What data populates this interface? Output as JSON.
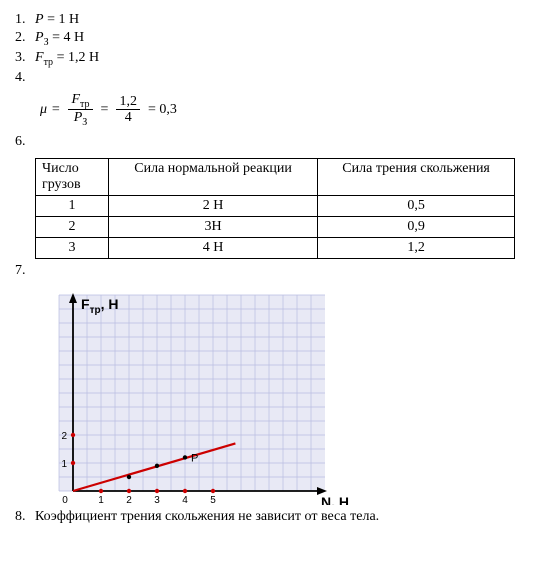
{
  "items": [
    {
      "n": "1.",
      "var": "P",
      "val": "= 1 Н"
    },
    {
      "n": "2.",
      "var": "P",
      "sub": "З",
      "val": "= 4 Н"
    },
    {
      "n": "3.",
      "var": "F",
      "sub": "тр",
      "val": "= 1,2 Н"
    },
    {
      "n": "4."
    }
  ],
  "formula": {
    "mu": "μ",
    "eq": "=",
    "f1num": "Fтр",
    "f1den": "PЗ",
    "f2num": "1,2",
    "f2den": "4",
    "result": "= 0,3"
  },
  "item6": "6.",
  "table": {
    "headers": [
      "Число грузов",
      "Сила нормальной реакции",
      "Сила трения скольжения"
    ],
    "rows": [
      [
        "1",
        "2 Н",
        "0,5"
      ],
      [
        "2",
        "3Н",
        "0,9"
      ],
      [
        "3",
        "4 Н",
        "1,2"
      ]
    ]
  },
  "item7": "7.",
  "chart": {
    "type": "line",
    "ylabel": "Fтр, Н",
    "xlabel": "N, Н",
    "grid_color": "#b8bce0",
    "grid_minor": "#d4d6ec",
    "bg": "#e8e9f5",
    "axis_color": "#000000",
    "line_color": "#cc0000",
    "point_color": "#cc0000",
    "tick_color": "#cc0000",
    "cell": 14,
    "xlim": [
      0,
      6
    ],
    "ylim": [
      0,
      6
    ],
    "xticks": [
      1,
      2,
      3,
      4,
      5
    ],
    "yticks": [
      1,
      2
    ],
    "data_points": [
      {
        "x": 0,
        "y": 0
      },
      {
        "x": 2,
        "y": 0.5
      },
      {
        "x": 3,
        "y": 0.9
      },
      {
        "x": 4,
        "y": 1.2
      }
    ],
    "line_end": {
      "x": 5.8,
      "y": 1.7
    },
    "origin_label": "0",
    "p_label": "P",
    "label_fontsize": 14,
    "tick_fontsize": 10
  },
  "item8": {
    "n": "8.",
    "text": "Коэффициент трения скольжения не зависит от веса тела."
  }
}
